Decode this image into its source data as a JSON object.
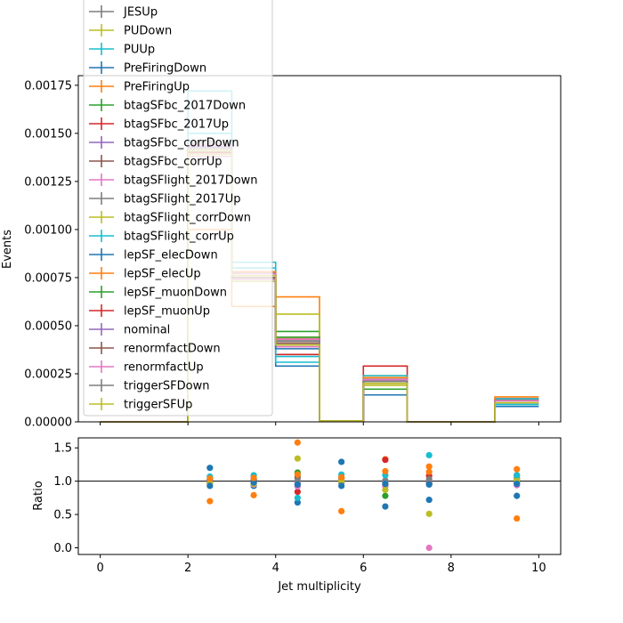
{
  "chart_data": [
    {
      "type": "line",
      "step": true,
      "ylabel": "Events",
      "xlim": [
        -0.5,
        10.5
      ],
      "ylim": [
        0,
        0.0018
      ],
      "yticks": [
        "0.00000",
        "0.00025",
        "0.00050",
        "0.00075",
        "0.00100",
        "0.00125",
        "0.00150",
        "0.00175"
      ],
      "bin_edges": [
        0,
        1,
        2,
        3,
        4,
        5,
        6,
        7,
        8,
        9,
        10
      ],
      "legend": {
        "position": "upper-left"
      },
      "series": [
        {
          "name": "JESUp",
          "color": "#7f7f7f",
          "values": [
            0,
            0,
            0.00146,
            0.00074,
            0.00042,
            5e-06,
            0.00021,
            0.0,
            0.0,
            0.0001
          ]
        },
        {
          "name": "PUDown",
          "color": "#bcbd22",
          "values": [
            0,
            0,
            0.00144,
            0.00076,
            0.00043,
            5e-06,
            0.00022,
            0.0,
            0.0,
            0.00011
          ]
        },
        {
          "name": "PUUp",
          "color": "#17becf",
          "values": [
            0,
            0,
            0.0015,
            0.0008,
            0.00034,
            5e-06,
            0.00023,
            0.0,
            0.0,
            9e-05
          ]
        },
        {
          "name": "PreFiringDown",
          "color": "#1f77b4",
          "values": [
            0,
            0,
            0.0014,
            0.00078,
            0.00029,
            5e-06,
            0.00014,
            0.0,
            0.0,
            8e-05
          ]
        },
        {
          "name": "PreFiringUp",
          "color": "#ff7f0e",
          "values": [
            0,
            0,
            0.001,
            0.0006,
            0.00065,
            5e-06,
            0.00024,
            0.0,
            0.0,
            0.00012
          ]
        },
        {
          "name": "btagSFbc_2017Down",
          "color": "#2ca02c",
          "values": [
            0,
            0,
            0.00143,
            0.00077,
            0.00047,
            5e-06,
            0.00017,
            0.0,
            0.0,
            0.00011
          ]
        },
        {
          "name": "btagSFbc_2017Up",
          "color": "#d62728",
          "values": [
            0,
            0,
            0.00142,
            0.00075,
            0.00035,
            5e-06,
            0.00029,
            0.0,
            0.0,
            0.00012
          ]
        },
        {
          "name": "btagSFbc_corrDown",
          "color": "#9467bd",
          "values": [
            0,
            0,
            0.00141,
            0.00076,
            0.0004,
            5e-06,
            0.00022,
            0.0,
            0.0,
            0.0001
          ]
        },
        {
          "name": "btagSFbc_corrUp",
          "color": "#8c564b",
          "values": [
            0,
            0,
            0.00143,
            0.00077,
            0.00041,
            5e-06,
            0.00023,
            0.0,
            0.0,
            0.00011
          ]
        },
        {
          "name": "btagSFlight_2017Down",
          "color": "#e377c2",
          "values": [
            0,
            0,
            0.00138,
            0.00074,
            0.00039,
            5e-06,
            0.0002,
            0.0,
            0.0,
            0.0001
          ]
        },
        {
          "name": "btagSFlight_2017Up",
          "color": "#7f7f7f",
          "values": [
            0,
            0,
            0.00145,
            0.00078,
            0.00042,
            5e-06,
            0.00022,
            0.0,
            0.0,
            0.00011
          ]
        },
        {
          "name": "btagSFlight_corrDown",
          "color": "#bcbd22",
          "values": [
            0,
            0,
            0.00139,
            0.00073,
            0.00056,
            5e-06,
            0.00019,
            0.0,
            0.0,
            0.00011
          ]
        },
        {
          "name": "btagSFlight_corrUp",
          "color": "#17becf",
          "values": [
            0,
            0,
            0.00172,
            0.00083,
            0.00031,
            5e-06,
            0.00024,
            0.0,
            0.0,
            0.00012
          ]
        },
        {
          "name": "lepSF_elecDown",
          "color": "#1f77b4",
          "values": [
            0,
            0,
            0.00144,
            0.00076,
            0.00038,
            5e-06,
            0.00021,
            0.0,
            0.0,
            0.0001
          ]
        },
        {
          "name": "lepSF_elecUp",
          "color": "#ff7f0e",
          "values": [
            0,
            0,
            0.00142,
            0.00078,
            0.00044,
            5e-06,
            0.00023,
            0.0,
            0.0,
            0.00013
          ]
        },
        {
          "name": "lepSF_muonDown",
          "color": "#2ca02c",
          "values": [
            0,
            0,
            0.00141,
            0.00075,
            0.00044,
            5e-06,
            0.00021,
            0.0,
            0.0,
            0.00011
          ]
        },
        {
          "name": "lepSF_muonUp",
          "color": "#d62728",
          "values": [
            0,
            0,
            0.0014,
            0.00077,
            0.00043,
            5e-06,
            0.00022,
            0.0,
            0.0,
            0.00011
          ]
        },
        {
          "name": "nominal",
          "color": "#9467bd",
          "values": [
            0,
            0,
            0.00143,
            0.00076,
            0.00042,
            5e-06,
            0.00022,
            0.0,
            0.0,
            0.00011
          ]
        },
        {
          "name": "renormfactDown",
          "color": "#8c564b",
          "values": [
            0,
            0,
            0.00141,
            0.00075,
            0.00041,
            5e-06,
            0.00021,
            0.0,
            0.0,
            0.0001
          ]
        },
        {
          "name": "renormfactUp",
          "color": "#e377c2",
          "values": [
            0,
            0,
            0.00144,
            0.00077,
            0.00043,
            5e-06,
            0.00022,
            0.0,
            0.0,
            0.00011
          ]
        },
        {
          "name": "triggerSFDown",
          "color": "#7f7f7f",
          "values": [
            0,
            0,
            0.00142,
            0.00076,
            0.00042,
            5e-06,
            0.00021,
            0.0,
            0.0,
            0.0001
          ]
        },
        {
          "name": "triggerSFUp",
          "color": "#bcbd22",
          "values": [
            0,
            0,
            0.00141,
            0.00076,
            0.0004,
            5e-06,
            0.0002,
            0.0,
            0.0,
            0.0001
          ]
        }
      ]
    },
    {
      "type": "scatter",
      "xlabel": "Jet multiplicity",
      "ylabel": "Ratio",
      "xlim": [
        -0.5,
        10.5
      ],
      "ylim": [
        -0.1,
        1.65
      ],
      "xticks": [
        "0",
        "2",
        "4",
        "6",
        "8",
        "10"
      ],
      "yticks": [
        "0.0",
        "0.5",
        "1.0",
        "1.5"
      ],
      "reference_line": 1.0,
      "x": [
        2.5,
        3.5,
        4.5,
        5.5,
        6.5,
        7.5,
        9.5
      ],
      "series": [
        {
          "color": "#1f77b4",
          "values": [
            1.2,
            0.93,
            0.68,
            1.29,
            0.62,
            0.72,
            0.78
          ]
        },
        {
          "color": "#ff7f0e",
          "values": [
            0.7,
            0.79,
            1.58,
            0.55,
            1.33,
            1.22,
            0.44
          ]
        },
        {
          "color": "#2ca02c",
          "values": [
            0.98,
            1.01,
            1.13,
            1.02,
            0.78,
            0.97,
            0.99
          ]
        },
        {
          "color": "#d62728",
          "values": [
            1.0,
            0.98,
            0.84,
            1.05,
            1.32,
            1.08,
            1.09
          ]
        },
        {
          "color": "#9467bd",
          "values": [
            1.01,
            1.0,
            0.96,
            1.0,
            1.0,
            1.0,
            0.96
          ]
        },
        {
          "color": "#8c564b",
          "values": [
            0.99,
            1.02,
            1.06,
            0.98,
            0.95,
            0.96,
            1.05
          ]
        },
        {
          "color": "#e377c2",
          "values": [
            0.97,
            0.95,
            0.92,
            1.01,
            0.92,
            0.0,
            0.94
          ]
        },
        {
          "color": "#7f7f7f",
          "values": [
            1.02,
            1.03,
            1.01,
            0.99,
            1.01,
            1.03,
            1.02
          ]
        },
        {
          "color": "#bcbd22",
          "values": [
            0.97,
            0.96,
            1.34,
            1.0,
            0.87,
            0.51,
            1.02
          ]
        },
        {
          "color": "#17becf",
          "values": [
            1.07,
            1.09,
            0.75,
            1.1,
            1.09,
            1.39,
            1.09
          ]
        },
        {
          "color": "#1f77b4",
          "values": [
            0.93,
            0.98,
            0.95,
            0.93,
            0.96,
            0.95,
            0.96
          ]
        },
        {
          "color": "#ff7f0e",
          "values": [
            1.04,
            1.05,
            1.1,
            1.06,
            1.15,
            1.14,
            1.18
          ]
        }
      ]
    }
  ]
}
